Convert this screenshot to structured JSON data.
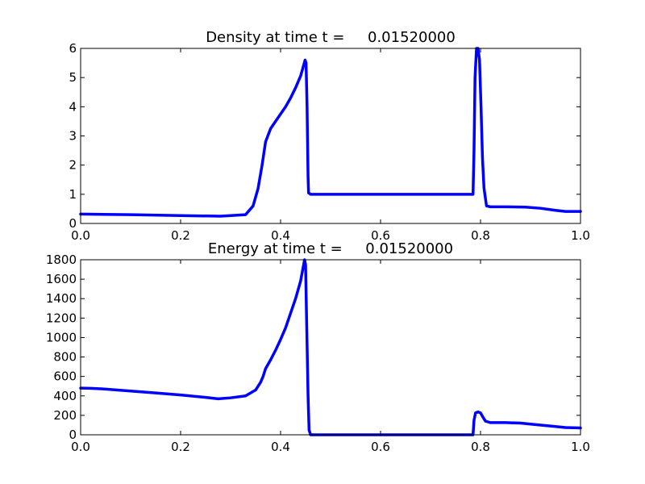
{
  "chart_data": [
    {
      "type": "line",
      "title": "Density at time t =     0.01520000",
      "xlabel": "",
      "ylabel": "",
      "xlim": [
        0.0,
        1.0
      ],
      "ylim": [
        0,
        6
      ],
      "x_ticks": [
        "0.0",
        "0.2",
        "0.4",
        "0.6",
        "0.8",
        "1.0"
      ],
      "y_ticks": [
        "0",
        "1",
        "2",
        "3",
        "4",
        "5",
        "6"
      ],
      "grid": false,
      "legend": "none",
      "series": [
        {
          "color": "#0000ff",
          "x": [
            0.0,
            0.1,
            0.2,
            0.28,
            0.33,
            0.345,
            0.355,
            0.363,
            0.37,
            0.38,
            0.39,
            0.4,
            0.41,
            0.42,
            0.43,
            0.44,
            0.445,
            0.449,
            0.451,
            0.453,
            0.455,
            0.456,
            0.46,
            0.5,
            0.6,
            0.7,
            0.785,
            0.787,
            0.789,
            0.792,
            0.795,
            0.798,
            0.801,
            0.804,
            0.807,
            0.812,
            0.82,
            0.85,
            0.89,
            0.92,
            0.95,
            0.97,
            1.0
          ],
          "y": [
            0.32,
            0.3,
            0.27,
            0.25,
            0.3,
            0.6,
            1.2,
            2.0,
            2.8,
            3.25,
            3.5,
            3.75,
            4.0,
            4.3,
            4.65,
            5.05,
            5.35,
            5.6,
            5.5,
            4.0,
            1.6,
            1.05,
            1.0,
            1.0,
            1.0,
            1.0,
            1.0,
            2.5,
            5.0,
            6.0,
            6.0,
            5.6,
            4.0,
            2.2,
            1.2,
            0.6,
            0.57,
            0.57,
            0.56,
            0.52,
            0.45,
            0.41,
            0.41
          ]
        }
      ]
    },
    {
      "type": "line",
      "title": "Energy at time t =     0.01520000",
      "xlabel": "",
      "ylabel": "",
      "xlim": [
        0.0,
        1.0
      ],
      "ylim": [
        0,
        1800
      ],
      "x_ticks": [
        "0.0",
        "0.2",
        "0.4",
        "0.6",
        "0.8",
        "1.0"
      ],
      "y_ticks": [
        "0",
        "200",
        "400",
        "600",
        "800",
        "1000",
        "1200",
        "1400",
        "1600",
        "1800"
      ],
      "grid": false,
      "legend": "none",
      "series": [
        {
          "color": "#0000ff",
          "x": [
            0.0,
            0.02,
            0.05,
            0.1,
            0.15,
            0.2,
            0.25,
            0.275,
            0.3,
            0.33,
            0.35,
            0.36,
            0.365,
            0.37,
            0.38,
            0.39,
            0.4,
            0.41,
            0.42,
            0.43,
            0.44,
            0.448,
            0.45,
            0.452,
            0.455,
            0.457,
            0.46,
            0.5,
            0.6,
            0.7,
            0.785,
            0.787,
            0.79,
            0.795,
            0.8,
            0.805,
            0.81,
            0.82,
            0.85,
            0.88,
            0.9,
            0.95,
            0.97,
            1.0
          ],
          "y": [
            480,
            478,
            470,
            450,
            430,
            410,
            385,
            370,
            380,
            400,
            460,
            540,
            600,
            680,
            770,
            870,
            980,
            1100,
            1250,
            1400,
            1580,
            1800,
            1750,
            1200,
            400,
            50,
            0,
            0,
            0,
            0,
            0,
            150,
            225,
            235,
            225,
            180,
            140,
            125,
            125,
            120,
            110,
            85,
            75,
            70
          ]
        }
      ]
    }
  ]
}
